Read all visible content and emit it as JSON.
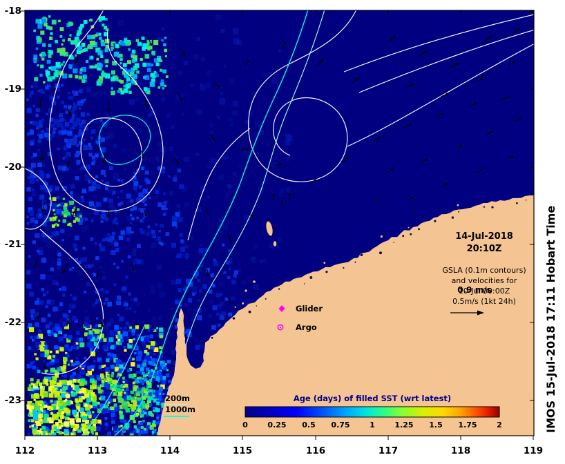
{
  "figure": {
    "timestamp_line1": "14-Jul-2018",
    "timestamp_line2": "20:10Z",
    "gsla": {
      "line1": "GSLA (0.1m contours)",
      "line2": "and velocities for",
      "line3": "10-Jul 00:00Z",
      "velocity_overlay": "0.9 m/s",
      "scale_label": "0.5m/s (1kt 24h)"
    },
    "markers": {
      "glider": "Glider",
      "argo": "Argo"
    },
    "bathymetry_legend": {
      "depth_200": "200m",
      "depth_1000": "1000m"
    },
    "watermark": "IMOS 15-Jul-2018 17:11 Hobart Time"
  },
  "colorbar": {
    "title": "Age (days) of filled SST (wrt latest)",
    "ticks": [
      "0",
      "0.25",
      "0.5",
      "0.75",
      "1",
      "1.25",
      "1.5",
      "1.75",
      "2"
    ]
  },
  "axes": {
    "x_ticks": [
      "112",
      "113",
      "114",
      "115",
      "116",
      "117",
      "118",
      "119"
    ],
    "y_ticks": [
      "-18",
      "-19",
      "-20",
      "-21",
      "-22",
      "-23"
    ]
  },
  "colors": {
    "ocean_base": "#000080",
    "land": "#F4C492",
    "contour_gsla": "#FFFFFF",
    "contour_200m": "#8CFFE4",
    "contour_1000m": "#00FFE0",
    "marker_magenta": "#FF00FF",
    "colorbar_title": "#00008B"
  }
}
